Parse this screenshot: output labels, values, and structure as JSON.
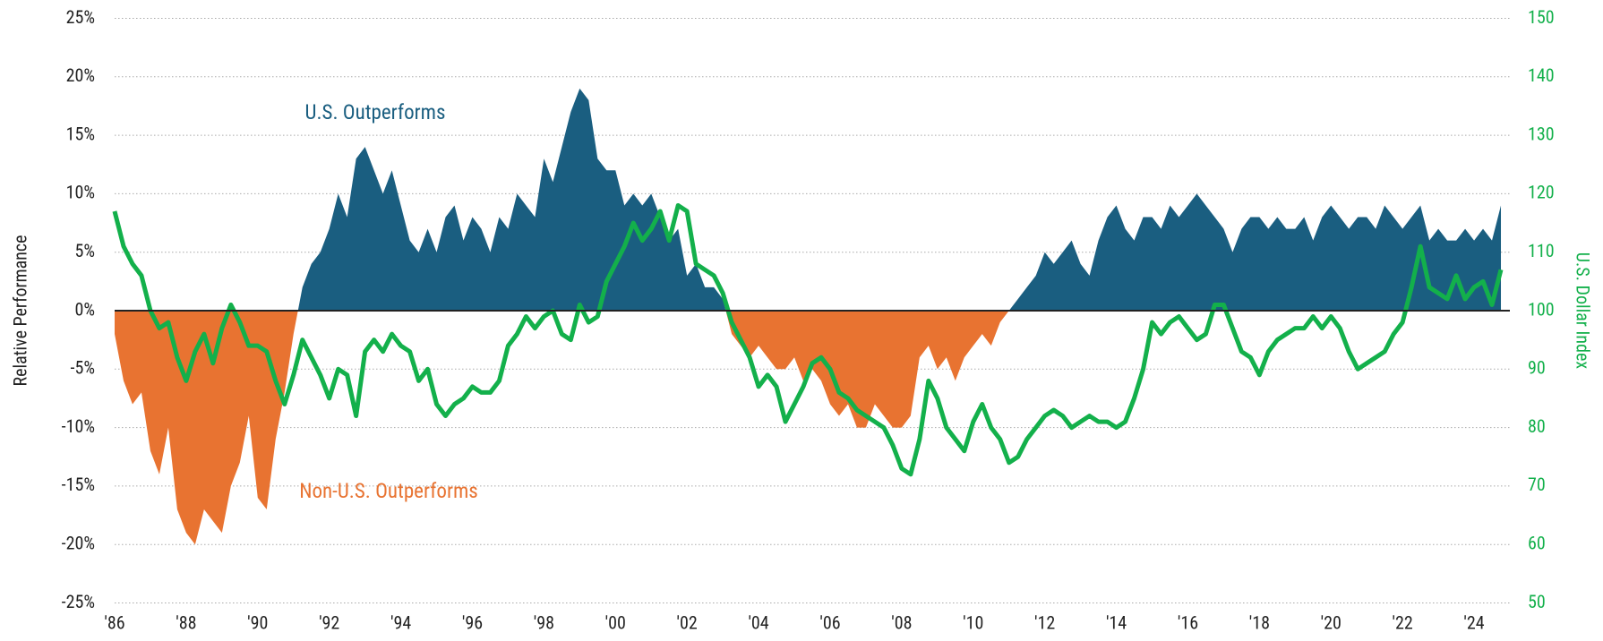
{
  "chart_data": {
    "type": "area-line",
    "y_label": "Relative Performance",
    "y2_label": "U.S. Dollar Index",
    "annotations": [
      "U.S. Outperforms",
      "Non-U.S. Outperforms"
    ],
    "xlim": [
      1986,
      2025
    ],
    "xticks": [
      {
        "value": 1986,
        "label": "'86"
      },
      {
        "value": 1988,
        "label": "'88"
      },
      {
        "value": 1990,
        "label": "'90"
      },
      {
        "value": 1992,
        "label": "'92"
      },
      {
        "value": 1994,
        "label": "'94"
      },
      {
        "value": 1996,
        "label": "'96"
      },
      {
        "value": 1998,
        "label": "'98"
      },
      {
        "value": 2000,
        "label": "'00"
      },
      {
        "value": 2002,
        "label": "'02"
      },
      {
        "value": 2004,
        "label": "'04"
      },
      {
        "value": 2006,
        "label": "'06"
      },
      {
        "value": 2008,
        "label": "'08"
      },
      {
        "value": 2010,
        "label": "'10"
      },
      {
        "value": 2012,
        "label": "'12"
      },
      {
        "value": 2014,
        "label": "'14"
      },
      {
        "value": 2016,
        "label": "'16"
      },
      {
        "value": 2018,
        "label": "'18"
      },
      {
        "value": 2020,
        "label": "'20"
      },
      {
        "value": 2022,
        "label": "'22"
      },
      {
        "value": 2024,
        "label": "'24"
      }
    ],
    "ylim": [
      -25,
      25
    ],
    "yticks": [
      {
        "value": 25,
        "label": "25%"
      },
      {
        "value": 20,
        "label": "20%"
      },
      {
        "value": 15,
        "label": "15%"
      },
      {
        "value": 10,
        "label": "10%"
      },
      {
        "value": 5,
        "label": "5%"
      },
      {
        "value": 0,
        "label": "0%"
      },
      {
        "value": -5,
        "label": "-5%"
      },
      {
        "value": -10,
        "label": "-10%"
      },
      {
        "value": -15,
        "label": "-15%"
      },
      {
        "value": -20,
        "label": "-20%"
      },
      {
        "value": -25,
        "label": "-25%"
      }
    ],
    "y2lim": [
      50,
      150
    ],
    "y2ticks": [
      150,
      140,
      130,
      120,
      110,
      100,
      90,
      80,
      70,
      60,
      50
    ],
    "grid": true,
    "x": [
      1986,
      1986.25,
      1986.5,
      1986.75,
      1987,
      1987.25,
      1987.5,
      1987.75,
      1988,
      1988.25,
      1988.5,
      1988.75,
      1989,
      1989.25,
      1989.5,
      1989.75,
      1990,
      1990.25,
      1990.5,
      1990.75,
      1991,
      1991.25,
      1991.5,
      1991.75,
      1992,
      1992.25,
      1992.5,
      1992.75,
      1993,
      1993.25,
      1993.5,
      1993.75,
      1994,
      1994.25,
      1994.5,
      1994.75,
      1995,
      1995.25,
      1995.5,
      1995.75,
      1996,
      1996.25,
      1996.5,
      1996.75,
      1997,
      1997.25,
      1997.5,
      1997.75,
      1998,
      1998.25,
      1998.5,
      1998.75,
      1999,
      1999.25,
      1999.5,
      1999.75,
      2000,
      2000.25,
      2000.5,
      2000.75,
      2001,
      2001.25,
      2001.5,
      2001.75,
      2002,
      2002.25,
      2002.5,
      2002.75,
      2003,
      2003.25,
      2003.5,
      2003.75,
      2004,
      2004.25,
      2004.5,
      2004.75,
      2005,
      2005.25,
      2005.5,
      2005.75,
      2006,
      2006.25,
      2006.5,
      2006.75,
      2007,
      2007.25,
      2007.5,
      2007.75,
      2008,
      2008.25,
      2008.5,
      2008.75,
      2009,
      2009.25,
      2009.5,
      2009.75,
      2010,
      2010.25,
      2010.5,
      2010.75,
      2011,
      2011.25,
      2011.5,
      2011.75,
      2012,
      2012.25,
      2012.5,
      2012.75,
      2013,
      2013.25,
      2013.5,
      2013.75,
      2014,
      2014.25,
      2014.5,
      2014.75,
      2015,
      2015.25,
      2015.5,
      2015.75,
      2016,
      2016.25,
      2016.5,
      2016.75,
      2017,
      2017.25,
      2017.5,
      2017.75,
      2018,
      2018.25,
      2018.5,
      2018.75,
      2019,
      2019.25,
      2019.5,
      2019.75,
      2020,
      2020.25,
      2020.5,
      2020.75,
      2021,
      2021.25,
      2021.5,
      2021.75,
      2022,
      2022.25,
      2022.5,
      2022.75,
      2023,
      2023.25,
      2023.5,
      2023.75,
      2024,
      2024.25,
      2024.5,
      2024.75
    ],
    "series": [
      {
        "kind": "area",
        "color_positive": "#1a5e80",
        "color_negative": "#e87331",
        "values": [
          -2,
          -6,
          -8,
          -7,
          -12,
          -14,
          -10,
          -17,
          -19,
          -20,
          -17,
          -18,
          -19,
          -15,
          -13,
          -9,
          -16,
          -17,
          -11,
          -7,
          -2,
          2,
          4,
          5,
          7,
          10,
          8,
          13,
          14,
          12,
          10,
          12,
          9,
          6,
          5,
          7,
          5,
          8,
          9,
          6,
          8,
          7,
          5,
          8,
          7,
          10,
          9,
          8,
          13,
          11,
          14,
          17,
          19,
          18,
          13,
          12,
          12,
          9,
          10,
          9,
          10,
          8,
          6,
          7,
          3,
          4,
          2,
          2,
          1,
          -2,
          -3,
          -4,
          -3,
          -4,
          -5,
          -5,
          -4,
          -6,
          -5,
          -6,
          -8,
          -9,
          -8,
          -10,
          -10,
          -8,
          -9,
          -10,
          -10,
          -9,
          -4,
          -3,
          -5,
          -4,
          -6,
          -4,
          -3,
          -2,
          -3,
          -1,
          0,
          1,
          2,
          3,
          5,
          4,
          5,
          6,
          4,
          3,
          6,
          8,
          9,
          7,
          6,
          8,
          8,
          7,
          9,
          8,
          9,
          10,
          9,
          8,
          7,
          5,
          7,
          8,
          8,
          7,
          8,
          7,
          7,
          8,
          6,
          8,
          9,
          8,
          7,
          8,
          8,
          7,
          9,
          8,
          7,
          8,
          9,
          6,
          7,
          6,
          6,
          7,
          6,
          7,
          6,
          9
        ]
      },
      {
        "kind": "line",
        "axis": "y2",
        "color": "#13b04b",
        "values": [
          117,
          111,
          108,
          106,
          100,
          97,
          98,
          92,
          88,
          93,
          96,
          91,
          97,
          101,
          98,
          94,
          94,
          93,
          88,
          84,
          89,
          95,
          92,
          89,
          85,
          90,
          89,
          82,
          93,
          95,
          93,
          96,
          94,
          93,
          88,
          90,
          84,
          82,
          84,
          85,
          87,
          86,
          86,
          88,
          94,
          96,
          99,
          97,
          99,
          100,
          96,
          95,
          101,
          98,
          99,
          105,
          108,
          111,
          115,
          112,
          114,
          117,
          112,
          118,
          117,
          108,
          107,
          106,
          103,
          98,
          95,
          92,
          87,
          89,
          87,
          81,
          84,
          87,
          91,
          92,
          90,
          86,
          85,
          83,
          82,
          81,
          80,
          77,
          73,
          72,
          78,
          88,
          85,
          80,
          78,
          76,
          81,
          84,
          80,
          78,
          74,
          75,
          78,
          80,
          82,
          83,
          82,
          80,
          81,
          82,
          81,
          81,
          80,
          81,
          85,
          90,
          98,
          96,
          98,
          99,
          97,
          95,
          96,
          101,
          101,
          97,
          93,
          92,
          89,
          93,
          95,
          96,
          97,
          97,
          99,
          97,
          99,
          97,
          93,
          90,
          91,
          92,
          93,
          96,
          98,
          104,
          111,
          104,
          103,
          102,
          106,
          102,
          104,
          105,
          101,
          107
        ]
      }
    ]
  }
}
